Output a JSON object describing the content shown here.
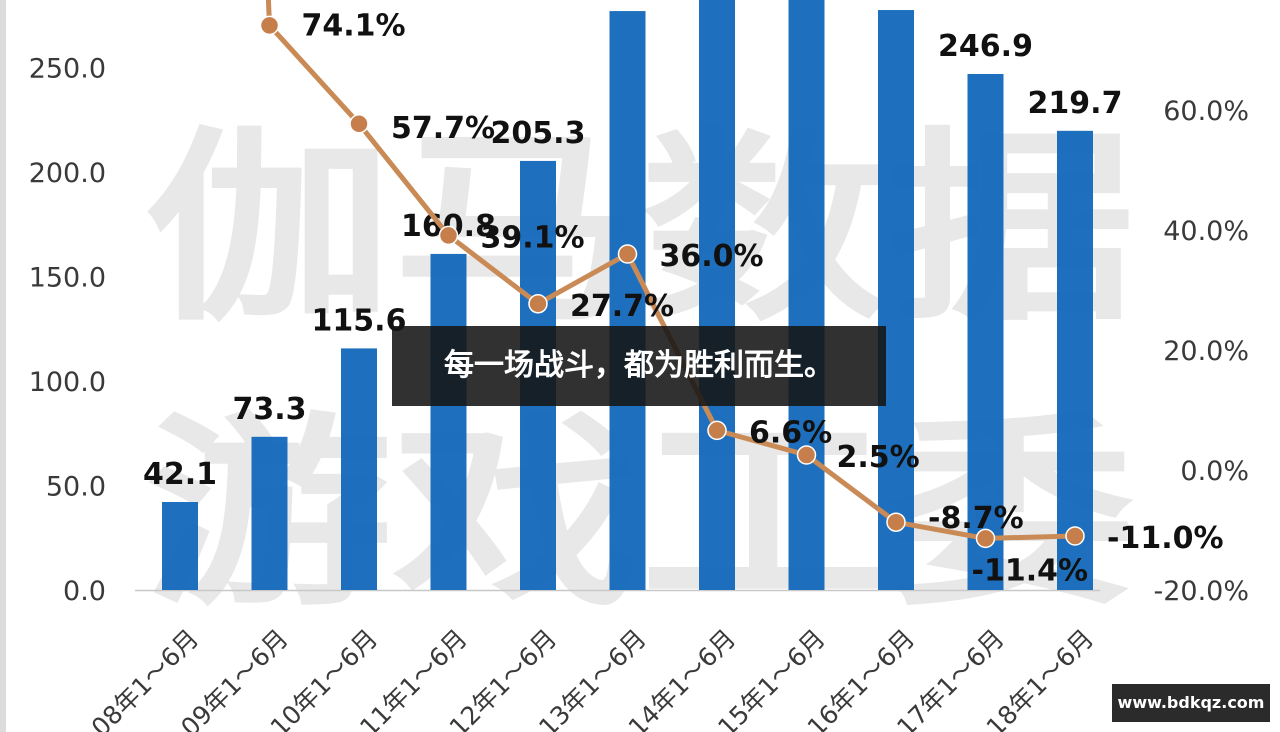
{
  "caption": "每一场战斗，都为胜利而生。",
  "site": "www.bdkqz.com",
  "watermark": [
    "伽马数据",
    "游戏工委"
  ],
  "colors": {
    "bar": "#0b64b8",
    "line": "#c98a55",
    "marker": "#c67e4a",
    "grid": "#c8c8c8",
    "axis_text": "#3a3a3a",
    "label_text": "#111111",
    "watermark": "#d6d6d6"
  },
  "chart_data": {
    "type": "bar",
    "categories": [
      "2008年1~6月",
      "2009年1~6月",
      "2010年1~6月",
      "2011年1~6月",
      "2012年1~6月",
      "2013年1~6月",
      "2014年1~6月",
      "2015年1~6月",
      "2016年1~6月",
      "2017年1~6月",
      "2018年1~6月"
    ],
    "category_labels_visible": [
      "08年1～6月",
      "09年1～6月",
      "10年1～6月",
      "11年1～6月",
      "12年1～6月",
      "13年1～6月",
      "14年1～6月",
      "15年1～6月",
      "16年1～6月",
      "17年1～6月",
      "18年1～6月"
    ],
    "bar_values": [
      42.1,
      73.3,
      115.6,
      160.8,
      205.3,
      277,
      315,
      315,
      277.5,
      246.9,
      219.7
    ],
    "bar_labels": [
      "42.1",
      "73.3",
      "115.6",
      "160.8",
      "205.3",
      "",
      "",
      "",
      "",
      "246.9",
      "219.7"
    ],
    "growth_values": [
      92,
      74.1,
      57.7,
      39.1,
      27.7,
      36.0,
      6.6,
      2.5,
      -8.7,
      -11.4,
      -11.0
    ],
    "growth_labels": [
      "",
      "74.1%",
      "57.7%",
      "39.1%",
      "27.7%",
      "36.0%",
      "6.6%",
      "2.5%",
      "-8.7%",
      "-11.4%",
      "-11.0%"
    ],
    "y_left": {
      "min": 0,
      "max": 300,
      "ticks": [
        "0.0",
        "50.0",
        "100.0",
        "150.0",
        "200.0",
        "250.0"
      ],
      "tick_values": [
        0,
        50,
        100,
        150,
        200,
        250
      ]
    },
    "y_right": {
      "min": -20,
      "max": 80,
      "ticks": [
        "-20.0%",
        "0.0%",
        "20.0%",
        "40.0%",
        "60.0%"
      ],
      "tick_values": [
        -20,
        0,
        20,
        40,
        60
      ]
    },
    "grid": false,
    "legend": "none"
  }
}
